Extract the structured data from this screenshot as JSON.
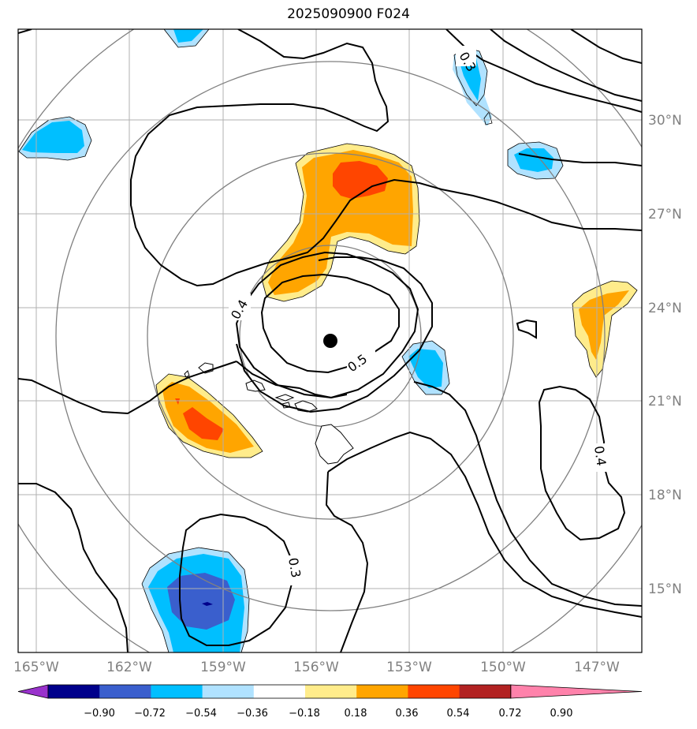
{
  "title": "2025090900 F024",
  "map": {
    "lon_labels": [
      "165°W",
      "162°W",
      "159°W",
      "156°W",
      "153°W",
      "150°W",
      "147°W"
    ],
    "lat_labels": [
      "30°N",
      "27°N",
      "24°N",
      "21°N",
      "18°N",
      "15°N"
    ],
    "contour_labels": [
      "0.3",
      "0.4",
      "0.5",
      "0.4",
      "0.3"
    ],
    "center_marker": "storm-center"
  },
  "colorbar": {
    "ticks": [
      "−0.90",
      "−0.72",
      "−0.54",
      "−0.36",
      "−0.18",
      "0.18",
      "0.36",
      "0.54",
      "0.72",
      "0.90"
    ],
    "colors": [
      "#9932cc",
      "#00008b",
      "#3a5fcd",
      "#00bfff",
      "#b0e2ff",
      "#ffffff",
      "#ffec8b",
      "#ffa500",
      "#ff4500",
      "#b22222",
      "#ff82ab"
    ]
  }
}
